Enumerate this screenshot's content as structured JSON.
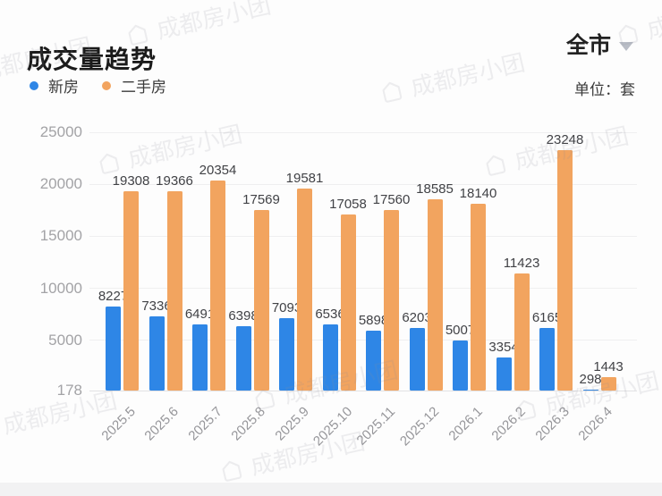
{
  "header": {
    "title": "成交量趋势",
    "region": "全市",
    "unit_label": "单位：套"
  },
  "legend": [
    {
      "id": "new-homes",
      "label": "新房",
      "color": "#2e86e6"
    },
    {
      "id": "resale-homes",
      "label": "二手房",
      "color": "#f2a45f"
    }
  ],
  "watermark": {
    "text": "成都房小团"
  },
  "chart_data": {
    "type": "bar",
    "title": "成交量趋势",
    "unit": "套",
    "categories": [
      "2025.5",
      "2025.6",
      "2025.7",
      "2025.8",
      "2025.9",
      "2025.10",
      "2025.11",
      "2025.12",
      "2026.1",
      "2026.2",
      "2026.3",
      "2026.4"
    ],
    "series": [
      {
        "name": "新房",
        "color": "#2e86e6",
        "values": [
          8227,
          7336,
          6491,
          6398,
          7093,
          6536,
          5898,
          6203,
          5007,
          3354,
          6165,
          298
        ]
      },
      {
        "name": "二手房",
        "color": "#f2a45f",
        "values": [
          19308,
          19366,
          20354,
          17569,
          19581,
          17058,
          17560,
          18585,
          18140,
          11423,
          23248,
          1443
        ]
      }
    ],
    "ylim": [
      178,
      25000
    ],
    "yticks": [
      178,
      5000,
      10000,
      15000,
      20000,
      25000
    ],
    "grid": true,
    "value_labels": true,
    "legend_position": "top-left",
    "x_label_rotation": -45
  }
}
